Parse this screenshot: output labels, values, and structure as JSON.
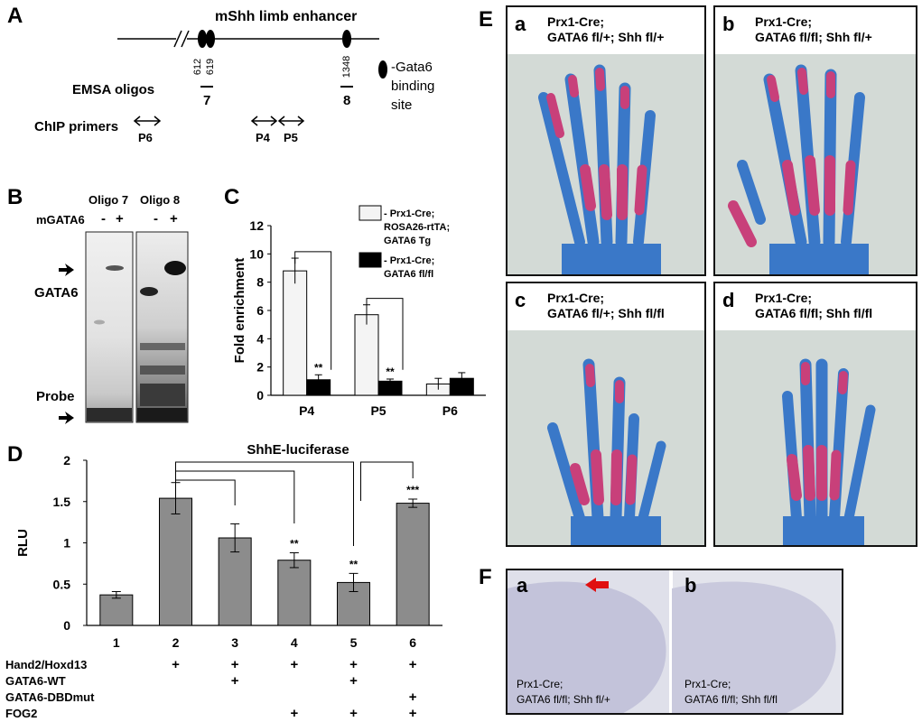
{
  "panel_A": {
    "letter": "A",
    "title": "mShh limb enhancer",
    "positions": [
      "612",
      "619",
      "1348"
    ],
    "emsa_label": "EMSA oligos",
    "oligo_numbers": [
      "7",
      "8"
    ],
    "legend_line1": "-Gata6",
    "legend_line2": "binding",
    "legend_line3": "site",
    "chip_label": "ChIP primers",
    "primers": [
      "P6",
      "P4",
      "P5"
    ]
  },
  "panel_B": {
    "letter": "B",
    "oligo7": "Oligo 7",
    "oligo8": "Oligo 8",
    "mgata6": "mGATA6",
    "signs": [
      "-",
      "+",
      "-",
      "+"
    ],
    "gata6": "GATA6",
    "probe": "Probe"
  },
  "panel_E": {
    "letter": "E",
    "cells": [
      {
        "letter": "a",
        "line1": "Prx1-Cre;",
        "line2": "GATA6 fl/+; Shh fl/+"
      },
      {
        "letter": "b",
        "line1": "Prx1-Cre;",
        "line2": "GATA6 fl/fl; Shh fl/+"
      },
      {
        "letter": "c",
        "line1": "Prx1-Cre;",
        "line2": "GATA6 fl/+; Shh fl/fl"
      },
      {
        "letter": "d",
        "line1": "Prx1-Cre;",
        "line2": "GATA6 fl/fl; Shh fl/fl"
      }
    ]
  },
  "panel_F": {
    "letter": "F",
    "cells": [
      {
        "letter": "a",
        "line1": "Prx1-Cre;",
        "line2": "GATA6 fl/fl; Shh fl/+"
      },
      {
        "letter": "b",
        "line1": "Prx1-Cre;",
        "line2": "GATA6 fl/fl; Shh fl/fl"
      }
    ]
  },
  "chart_data": [
    {
      "panel": "C",
      "type": "bar",
      "ylabel": "Fold enrichment",
      "ylim": [
        0,
        12
      ],
      "yticks": [
        0,
        2,
        4,
        6,
        8,
        10,
        12
      ],
      "categories": [
        "P4",
        "P5",
        "P6"
      ],
      "series": [
        {
          "name": "Prx1-Cre; ROSA26-rtTA; GATA6 Tg",
          "legend_lines": [
            "- Prx1-Cre;",
            "ROSA26-rtTA;",
            "GATA6 Tg"
          ],
          "color": "#f4f4f4",
          "values": [
            8.8,
            5.7,
            0.8
          ],
          "errors": [
            0.9,
            0.7,
            0.4
          ]
        },
        {
          "name": "Prx1-Cre; GATA6 fl/fl",
          "legend_lines": [
            "- Prx1-Cre;",
            "GATA6 fl/fl"
          ],
          "color": "#000000",
          "values": [
            1.1,
            1.0,
            1.2
          ],
          "errors": [
            0.35,
            0.15,
            0.4
          ]
        }
      ],
      "annotations": [
        "**",
        "**"
      ],
      "grid": false
    },
    {
      "panel": "D",
      "type": "bar",
      "title": "ShhE-luciferase",
      "ylabel": "RLU",
      "ylim": [
        0,
        2
      ],
      "yticks": [
        "0",
        "0.5",
        "1",
        "1.5",
        "2"
      ],
      "categories": [
        "1",
        "2",
        "3",
        "4",
        "5",
        "6"
      ],
      "values": [
        0.37,
        1.54,
        1.06,
        0.79,
        0.52,
        1.48
      ],
      "errors": [
        0.04,
        0.19,
        0.17,
        0.09,
        0.11,
        0.05
      ],
      "significance": [
        "",
        "",
        "",
        "**",
        "**",
        "***"
      ],
      "color": "#8c8c8c",
      "conditions": [
        {
          "label": "Hand2/Hoxd13",
          "marks": [
            "",
            "+",
            "+",
            "+",
            "+",
            "+"
          ]
        },
        {
          "label": "GATA6-WT",
          "marks": [
            "",
            "",
            "+",
            "",
            "+",
            ""
          ]
        },
        {
          "label": "GATA6-DBDmut",
          "marks": [
            "",
            "",
            "",
            "",
            "",
            "+"
          ]
        },
        {
          "label": "FOG2",
          "marks": [
            "",
            "",
            "",
            "+",
            "+",
            "+"
          ]
        }
      ]
    }
  ]
}
